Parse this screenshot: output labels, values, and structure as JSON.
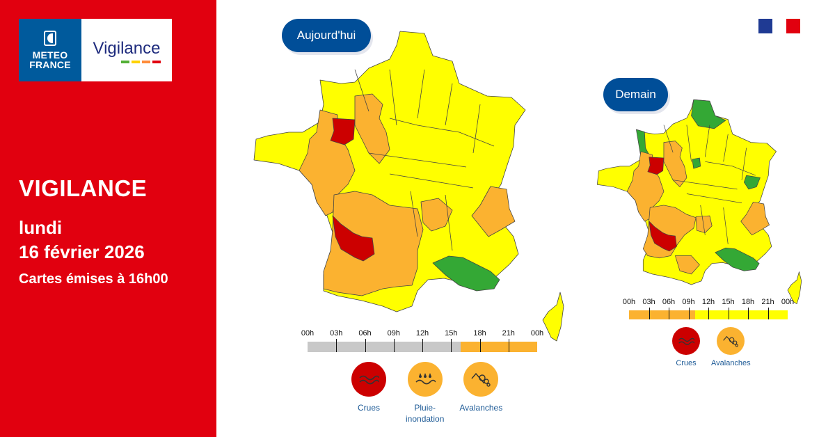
{
  "logo": {
    "brand_line1": "METEO",
    "brand_line2": "FRANCE",
    "product": "Vigilance",
    "bar_colors": [
      "#52b035",
      "#ffd200",
      "#ff8c3a",
      "#e1000f"
    ]
  },
  "left_panel": {
    "title": "VIGILANCE",
    "day": "lundi",
    "date": "16 février 2026",
    "emission": "Cartes émises à 16h00",
    "background": "#e1000f"
  },
  "today": {
    "label": "Aujourd'hui",
    "timeline": {
      "ticks": [
        "00h",
        "03h",
        "06h",
        "09h",
        "12h",
        "15h",
        "18h",
        "21h",
        "00h"
      ],
      "segments": [
        {
          "from_hour": 0,
          "to_hour": 16,
          "color": "#c8c8c8",
          "level": "passed"
        },
        {
          "from_hour": 16,
          "to_hour": 24,
          "color": "#fbb230",
          "level": "orange"
        }
      ]
    },
    "phenomena": [
      {
        "name": "Crues",
        "icon": "flood-icon",
        "color": "#cc0000"
      },
      {
        "name": "Pluie-inondation",
        "line1": "Pluie-",
        "line2": "inondation",
        "icon": "rain-flood-icon",
        "color": "#fbb230"
      },
      {
        "name": "Avalanches",
        "icon": "avalanche-icon",
        "color": "#fbb230"
      }
    ]
  },
  "tomorrow": {
    "label": "Demain",
    "timeline": {
      "ticks": [
        "00h",
        "03h",
        "06h",
        "09h",
        "12h",
        "15h",
        "18h",
        "21h",
        "00h"
      ],
      "segments": [
        {
          "from_hour": 0,
          "to_hour": 10,
          "color": "#fbb230",
          "level": "orange"
        },
        {
          "from_hour": 10,
          "to_hour": 24,
          "color": "#ffff00",
          "level": "yellow"
        }
      ]
    },
    "phenomena": [
      {
        "name": "Crues",
        "icon": "flood-icon",
        "color": "#cc0000"
      },
      {
        "name": "Avalanches",
        "icon": "avalanche-icon",
        "color": "#fbb230"
      }
    ]
  },
  "legend_colors": {
    "green": "#34a835",
    "yellow": "#ffff00",
    "orange": "#fbb230",
    "red": "#cc0000"
  }
}
